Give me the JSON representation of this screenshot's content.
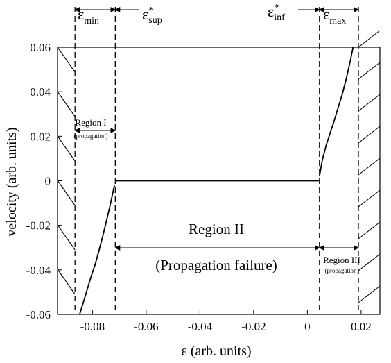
{
  "chart_data": {
    "type": "line",
    "xlabel": "ε (arb. units)",
    "ylabel": "velocity (arb. units)",
    "xlim": [
      -0.093,
      0.027
    ],
    "ylim": [
      -0.06,
      0.06
    ],
    "x_ticks": [
      -0.08,
      -0.06,
      -0.04,
      -0.02,
      0,
      0.02
    ],
    "x_tick_labels": [
      "-0.08",
      "-0.06",
      "-0.04",
      "-0.02",
      "0",
      "0.02"
    ],
    "y_ticks": [
      -0.06,
      -0.04,
      -0.02,
      0,
      0.02,
      0.04,
      0.06
    ],
    "y_tick_labels": [
      "-0.06",
      "-0.04",
      "-0.02",
      "0",
      "0.02",
      "0.04",
      "0.06"
    ],
    "grid": false,
    "boundaries": {
      "eps_min": -0.0865,
      "eps_sup": -0.0715,
      "eps_inf": 0.0045,
      "eps_max": 0.019
    },
    "series": [
      {
        "x": [
          -0.0848,
          -0.0835,
          -0.082,
          -0.0805,
          -0.079,
          -0.0775,
          -0.0762,
          -0.075,
          -0.0738,
          -0.0728,
          -0.0718
        ],
        "y": [
          -0.06,
          -0.055,
          -0.049,
          -0.043,
          -0.0375,
          -0.031,
          -0.025,
          -0.019,
          -0.013,
          -0.0075,
          -0.002
        ]
      },
      {
        "x": [
          -0.0715,
          0.0045
        ],
        "y": [
          0,
          0
        ]
      },
      {
        "x": [
          0.0045,
          0.0055,
          0.007,
          0.0085,
          0.01,
          0.0115,
          0.013,
          0.0145,
          0.016,
          0.017
        ],
        "y": [
          0.002,
          0.009,
          0.016,
          0.0215,
          0.027,
          0.033,
          0.039,
          0.046,
          0.054,
          0.06
        ]
      }
    ],
    "annotations": {
      "eps_min": {
        "symbol": "ε",
        "sub": "min"
      },
      "eps_sup": {
        "symbol": "ε",
        "sup": "*",
        "sub": "sup"
      },
      "eps_inf": {
        "symbol": "ε",
        "sup": "*",
        "sub": "inf"
      },
      "eps_max": {
        "symbol": "ε",
        "sub": "max"
      },
      "region1_title": "Region I",
      "region1_sub": "(propagation)",
      "region2_title": "Region II",
      "region2_sub": "(Propagation failure)",
      "region3_title": "Region III",
      "region3_sub": "(propagation)"
    }
  }
}
